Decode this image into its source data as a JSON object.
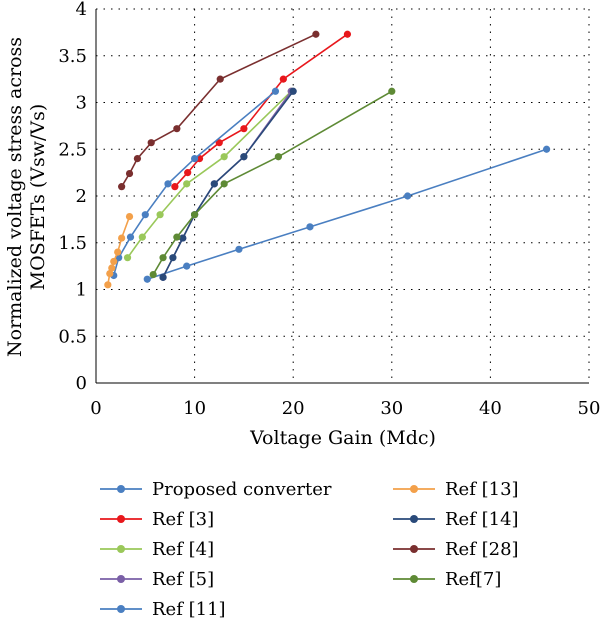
{
  "chart_data": {
    "type": "line",
    "xlabel": "Voltage Gain (Mdc)",
    "ylabel_line1": "Normalized voltage stress across",
    "ylabel_line2": "MOSFETs (Vsw/Vs)",
    "xlim": [
      0,
      50
    ],
    "ylim": [
      0,
      4
    ],
    "xticks": [
      "0",
      "10",
      "20",
      "30",
      "40",
      "50"
    ],
    "yticks": [
      "0",
      "0.5",
      "1",
      "1.5",
      "2",
      "2.5",
      "3",
      "3.5",
      "4"
    ],
    "grid": true,
    "legend_position": "bottom",
    "series": [
      {
        "name": "Proposed converter",
        "color": "#4a7fc1",
        "points": [
          [
            5.2,
            1.11
          ],
          [
            9.2,
            1.25
          ],
          [
            14.5,
            1.43
          ],
          [
            21.7,
            1.67
          ],
          [
            31.6,
            2.0
          ],
          [
            45.7,
            2.5
          ]
        ]
      },
      {
        "name": "Ref [3]",
        "color": "#e8171c",
        "points": [
          [
            8.0,
            2.1
          ],
          [
            9.3,
            2.25
          ],
          [
            10.5,
            2.4
          ],
          [
            12.5,
            2.57
          ],
          [
            15.0,
            2.72
          ],
          [
            19.0,
            3.25
          ],
          [
            25.5,
            3.73
          ]
        ]
      },
      {
        "name": "Ref [4]",
        "color": "#9ac85a",
        "points": [
          [
            3.2,
            1.34
          ],
          [
            4.7,
            1.56
          ],
          [
            6.5,
            1.8
          ],
          [
            9.2,
            2.13
          ],
          [
            13.0,
            2.42
          ],
          [
            19.8,
            3.12
          ]
        ]
      },
      {
        "name": "Ref [5]",
        "color": "#7a5fa6",
        "points": [
          [
            6.8,
            1.13
          ],
          [
            8.8,
            1.55
          ],
          [
            10.0,
            1.8
          ],
          [
            12.0,
            2.13
          ],
          [
            15.0,
            2.42
          ],
          [
            19.8,
            3.12
          ]
        ]
      },
      {
        "name": "Ref [11]",
        "color": "#4a7fc1",
        "points": [
          [
            1.8,
            1.15
          ],
          [
            2.3,
            1.34
          ],
          [
            3.5,
            1.56
          ],
          [
            5.0,
            1.8
          ],
          [
            7.3,
            2.13
          ],
          [
            10.0,
            2.4
          ],
          [
            18.2,
            3.12
          ]
        ]
      },
      {
        "name": "Ref [13]",
        "color": "#f3a04a",
        "points": [
          [
            1.2,
            1.05
          ],
          [
            1.4,
            1.17
          ],
          [
            1.6,
            1.23
          ],
          [
            1.8,
            1.3
          ],
          [
            2.2,
            1.4
          ],
          [
            2.6,
            1.55
          ],
          [
            3.4,
            1.78
          ]
        ]
      },
      {
        "name": "Ref [14]",
        "color": "#2a4a7a",
        "points": [
          [
            6.8,
            1.13
          ],
          [
            7.8,
            1.34
          ],
          [
            8.8,
            1.55
          ],
          [
            10.0,
            1.8
          ],
          [
            12.0,
            2.13
          ],
          [
            15.0,
            2.42
          ],
          [
            20.0,
            3.12
          ]
        ]
      },
      {
        "name": "Ref [28]",
        "color": "#7a2f2f",
        "points": [
          [
            2.6,
            2.1
          ],
          [
            3.4,
            2.24
          ],
          [
            4.2,
            2.4
          ],
          [
            5.6,
            2.57
          ],
          [
            8.2,
            2.72
          ],
          [
            12.6,
            3.25
          ],
          [
            22.3,
            3.73
          ]
        ]
      },
      {
        "name": "Ref[7]",
        "color": "#5e8a35",
        "points": [
          [
            5.8,
            1.16
          ],
          [
            6.8,
            1.34
          ],
          [
            8.2,
            1.56
          ],
          [
            10.0,
            1.8
          ],
          [
            13.0,
            2.13
          ],
          [
            18.5,
            2.42
          ],
          [
            30.0,
            3.12
          ]
        ]
      }
    ]
  }
}
